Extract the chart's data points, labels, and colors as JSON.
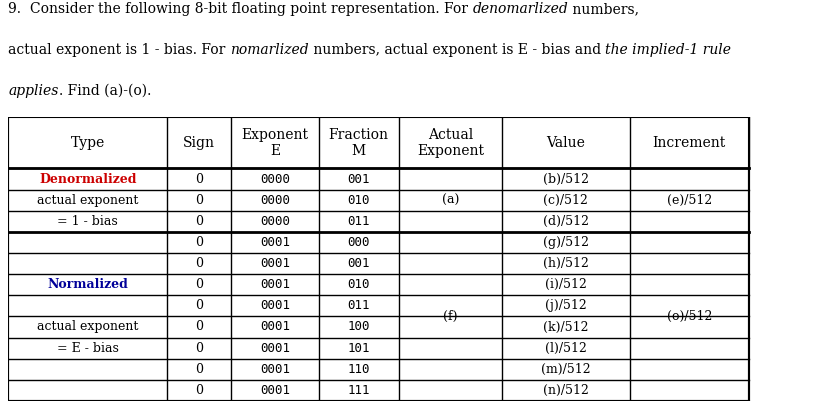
{
  "header_row": [
    "Type",
    "Sign",
    "Exponent\nE",
    "Fraction\nM",
    "Actual\nExponent",
    "Value",
    "Increment"
  ],
  "table_rows": [
    {
      "sign": "0",
      "exp": "0000",
      "frac": "001",
      "value": "(b)/512"
    },
    {
      "sign": "0",
      "exp": "0000",
      "frac": "010",
      "value": "(c)/512"
    },
    {
      "sign": "0",
      "exp": "0000",
      "frac": "011",
      "value": "(d)/512"
    },
    {
      "sign": "0",
      "exp": "0001",
      "frac": "000",
      "value": "(g)/512"
    },
    {
      "sign": "0",
      "exp": "0001",
      "frac": "001",
      "value": "(h)/512"
    },
    {
      "sign": "0",
      "exp": "0001",
      "frac": "010",
      "value": "(i)/512"
    },
    {
      "sign": "0",
      "exp": "0001",
      "frac": "011",
      "value": "(j)/512"
    },
    {
      "sign": "0",
      "exp": "0001",
      "frac": "100",
      "value": "(k)/512"
    },
    {
      "sign": "0",
      "exp": "0001",
      "frac": "101",
      "value": "(l)/512"
    },
    {
      "sign": "0",
      "exp": "0001",
      "frac": "110",
      "value": "(m)/512"
    },
    {
      "sign": "0",
      "exp": "0001",
      "frac": "111",
      "value": "(n)/512"
    }
  ],
  "type_labels": [
    {
      "row": 0,
      "label": "Denormalized",
      "color": "#CC0000",
      "weight": "bold"
    },
    {
      "row": 1,
      "label": "actual exponent",
      "color": "black",
      "weight": "normal"
    },
    {
      "row": 2,
      "label": "= 1 - bias",
      "color": "black",
      "weight": "normal"
    },
    {
      "row": 5,
      "label": "Normalized",
      "color": "#000099",
      "weight": "bold"
    },
    {
      "row": 7,
      "label": "actual exponent",
      "color": "black",
      "weight": "normal"
    },
    {
      "row": 8,
      "label": "= E - bias",
      "color": "black",
      "weight": "normal"
    }
  ],
  "act_exp_denorm": "(a)",
  "act_exp_norm": "(f)",
  "incr_denorm": "(e)/512",
  "incr_norm": "(o)/512",
  "bg_color": "white",
  "border_color": "black",
  "font_size_header": 10,
  "font_size_body": 9,
  "font_size_title": 10,
  "col_starts": [
    0.0,
    0.2,
    0.28,
    0.39,
    0.49,
    0.62,
    0.78
  ],
  "col_ends": [
    0.2,
    0.28,
    0.39,
    0.49,
    0.62,
    0.78,
    0.93
  ],
  "title_line1_parts": [
    {
      "text": "9.  ",
      "style": "normal",
      "color": "black"
    },
    {
      "text": "Consider the following 8-bit floating point representation. For ",
      "style": "normal",
      "color": "black"
    },
    {
      "text": "denomarlized",
      "style": "italic",
      "color": "black"
    },
    {
      "text": " numbers,",
      "style": "normal",
      "color": "black"
    }
  ],
  "title_line2_parts": [
    {
      "text": "actual exponent is 1 - bias. For ",
      "style": "normal",
      "color": "black"
    },
    {
      "text": "nomarlized",
      "style": "italic",
      "color": "black"
    },
    {
      "text": " numbers, actual exponent is E - bias and ",
      "style": "normal",
      "color": "black"
    },
    {
      "text": "the implied-1 rule",
      "style": "italic",
      "color": "black"
    }
  ],
  "title_line3_parts": [
    {
      "text": "applies",
      "style": "italic",
      "color": "black"
    },
    {
      "text": ". Find (a)-(o).",
      "style": "normal",
      "color": "black"
    }
  ]
}
